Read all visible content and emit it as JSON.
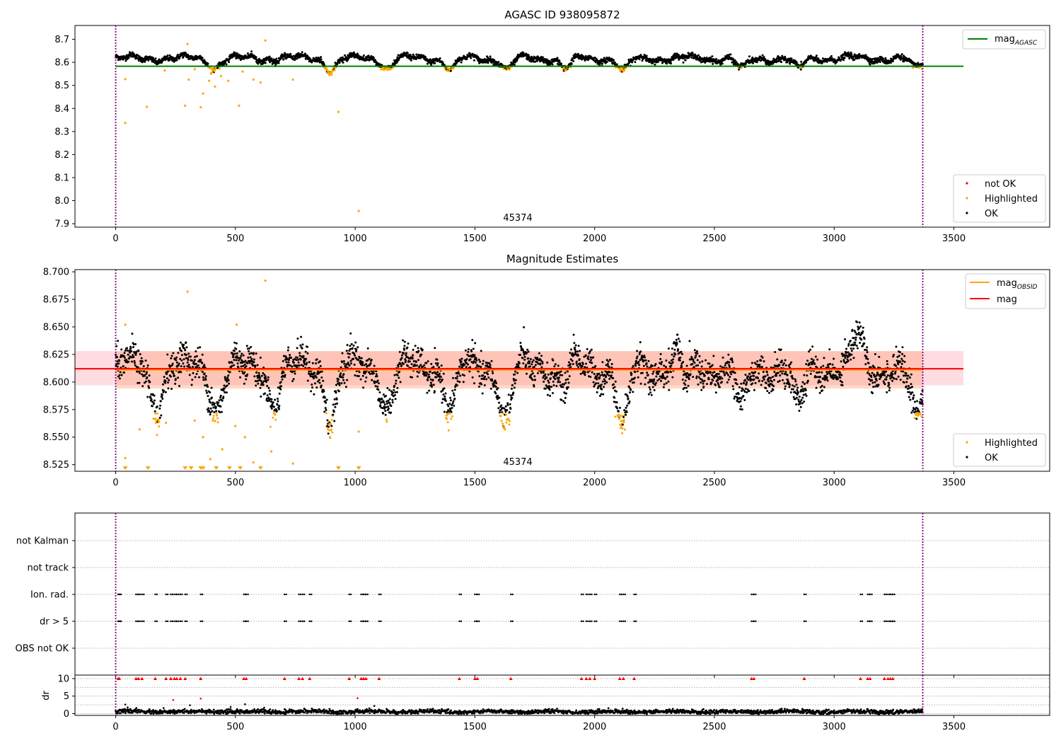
{
  "colors": {
    "ok": "#000000",
    "highlighted": "#ffa500",
    "not_ok": "#ff0000",
    "mag_agasc_line": "#008000",
    "mag_obsid_line": "#ffa500",
    "mag_line": "#ff0000",
    "obsid_band": "#ffa07a",
    "mag_band": "#ffc0cb",
    "time_range_marker": "#800080"
  },
  "chart_data": [
    {
      "type": "scatter",
      "title": "AGASC ID 938095872",
      "xlim": [
        -170,
        3900
      ],
      "ylim": [
        7.885,
        8.76
      ],
      "xticks": [
        0,
        500,
        1000,
        1500,
        2000,
        2500,
        3000,
        3500
      ],
      "yticks": [
        7.9,
        8.0,
        8.1,
        8.2,
        8.3,
        8.4,
        8.5,
        8.6,
        8.7
      ],
      "ytick_labels": [
        "7.9",
        "8.0",
        "8.1",
        "8.2",
        "8.3",
        "8.4",
        "8.5",
        "8.6",
        "8.7"
      ],
      "time_range": [
        0,
        3370
      ],
      "annotation": {
        "text": "45374",
        "x": 1680
      },
      "mag_agasc": 8.583,
      "mag_agasc_xrange": [
        0,
        3540
      ],
      "legend_lines": [
        {
          "name": "mag",
          "sub": "AGASC"
        }
      ],
      "legend_points": [
        "not OK",
        "Highlighted",
        "OK"
      ],
      "highlighted_outliers": [
        [
          40,
          8.527
        ],
        [
          40,
          8.337
        ],
        [
          130,
          8.407
        ],
        [
          205,
          8.565
        ],
        [
          290,
          8.412
        ],
        [
          300,
          8.68
        ],
        [
          305,
          8.525
        ],
        [
          330,
          8.57
        ],
        [
          355,
          8.405
        ],
        [
          365,
          8.465
        ],
        [
          390,
          8.52
        ],
        [
          415,
          8.495
        ],
        [
          440,
          8.54
        ],
        [
          470,
          8.52
        ],
        [
          515,
          8.412
        ],
        [
          530,
          8.56
        ],
        [
          575,
          8.525
        ],
        [
          605,
          8.513
        ],
        [
          625,
          8.695
        ],
        [
          740,
          8.525
        ],
        [
          930,
          8.385
        ],
        [
          1015,
          7.955
        ]
      ],
      "dip_clusters": [
        [
          415,
          8.575
        ],
        [
          900,
          8.565
        ],
        [
          1135,
          8.575
        ],
        [
          1400,
          8.57
        ],
        [
          1635,
          8.568
        ],
        [
          1880,
          8.572
        ],
        [
          2120,
          8.56
        ],
        [
          2615,
          8.57
        ],
        [
          2850,
          8.572
        ],
        [
          3340,
          8.57
        ]
      ]
    },
    {
      "type": "scatter",
      "title": "Magnitude Estimates",
      "xlim": [
        -170,
        3900
      ],
      "ylim": [
        8.519,
        8.702
      ],
      "xticks": [
        0,
        500,
        1000,
        1500,
        2000,
        2500,
        3000,
        3500
      ],
      "yticks": [
        8.525,
        8.55,
        8.575,
        8.6,
        8.625,
        8.65,
        8.675,
        8.7
      ],
      "ytick_labels": [
        "8.525",
        "8.550",
        "8.575",
        "8.600",
        "8.625",
        "8.650",
        "8.675",
        "8.700"
      ],
      "time_range": [
        0,
        3370
      ],
      "annotation": {
        "text": "45374",
        "x": 1680
      },
      "mag_obsid": 8.611,
      "mag_obsid_band": [
        8.594,
        8.628
      ],
      "mag": 8.612,
      "mag_band": [
        8.597,
        8.628
      ],
      "band_xrange": [
        -170,
        3540
      ],
      "legend_lines": [
        {
          "name": "mag",
          "sub": "OBSID"
        },
        {
          "name": "mag",
          "sub": ""
        }
      ],
      "legend_points": [
        "Highlighted",
        "OK"
      ],
      "highlighted_outliers": [
        [
          40,
          8.652
        ],
        [
          40,
          8.531
        ],
        [
          100,
          8.557
        ],
        [
          210,
          8.563
        ],
        [
          300,
          8.682
        ],
        [
          330,
          8.565
        ],
        [
          365,
          8.55
        ],
        [
          395,
          8.53
        ],
        [
          445,
          8.539
        ],
        [
          500,
          8.56
        ],
        [
          505,
          8.652
        ],
        [
          540,
          8.55
        ],
        [
          575,
          8.527
        ],
        [
          625,
          8.692
        ],
        [
          650,
          8.537
        ],
        [
          740,
          8.526
        ],
        [
          1015,
          8.555
        ]
      ],
      "offscale_markers": [
        40,
        135,
        290,
        315,
        355,
        365,
        420,
        475,
        520,
        605,
        930,
        1015
      ],
      "dip_clusters": [
        [
          170,
          8.578
        ],
        [
          420,
          8.575
        ],
        [
          660,
          8.582
        ],
        [
          900,
          8.568
        ],
        [
          1135,
          8.578
        ],
        [
          1400,
          8.575
        ],
        [
          1630,
          8.562
        ],
        [
          1880,
          8.575
        ],
        [
          2120,
          8.555
        ],
        [
          2370,
          8.58
        ],
        [
          2615,
          8.575
        ],
        [
          2850,
          8.575
        ],
        [
          3340,
          8.565
        ]
      ],
      "bump_clusters": [
        [
          1890,
          8.638
        ],
        [
          2355,
          8.645
        ],
        [
          3100,
          8.64
        ]
      ]
    },
    {
      "type": "scatter",
      "title": "",
      "xlim": [
        -170,
        3900
      ],
      "ylim": [
        0,
        5
      ],
      "xticks": [
        0,
        500,
        1000,
        1500,
        2000,
        2500,
        3000,
        3500
      ],
      "categories": [
        "not Kalman",
        "not track",
        "Ion. rad.",
        "dr > 5",
        "OBS not OK"
      ],
      "time_range": [
        0,
        3370
      ],
      "flag_times": [
        10,
        15,
        85,
        95,
        110,
        165,
        210,
        230,
        245,
        255,
        270,
        290,
        355,
        535,
        545,
        705,
        765,
        780,
        810,
        975,
        1025,
        1035,
        1045,
        1100,
        1435,
        1500,
        1510,
        1650,
        1945,
        1965,
        1980,
        2000,
        2105,
        2120,
        2165,
        2655,
        2665,
        2875,
        3110,
        3140,
        3150,
        3210,
        3225,
        3235,
        3245
      ]
    },
    {
      "type": "scatter",
      "title": "",
      "xlim": [
        -170,
        3900
      ],
      "ylim": [
        -0.5,
        11
      ],
      "xticks": [
        0,
        500,
        1000,
        1500,
        2000,
        2500,
        3000,
        3500
      ],
      "xtick_labels": [
        "0",
        "500",
        "1000",
        "1500",
        "2000",
        "2500",
        "3000",
        "3500"
      ],
      "yticks": [
        0,
        5,
        10
      ],
      "ytick_labels": [
        "0",
        "5",
        "10"
      ],
      "ylabel": "dr",
      "time_range": [
        0,
        3370
      ],
      "clip_value": 10,
      "scattered_points": [
        [
          40,
          2.6
        ],
        [
          240,
          3.9
        ],
        [
          310,
          2.4
        ],
        [
          355,
          4.3
        ],
        [
          540,
          2.7
        ],
        [
          1010,
          4.4
        ],
        [
          1080,
          2.2
        ],
        [
          50,
          1.8
        ],
        [
          200,
          1.6
        ],
        [
          480,
          1.9
        ],
        [
          620,
          1.7
        ]
      ]
    }
  ]
}
